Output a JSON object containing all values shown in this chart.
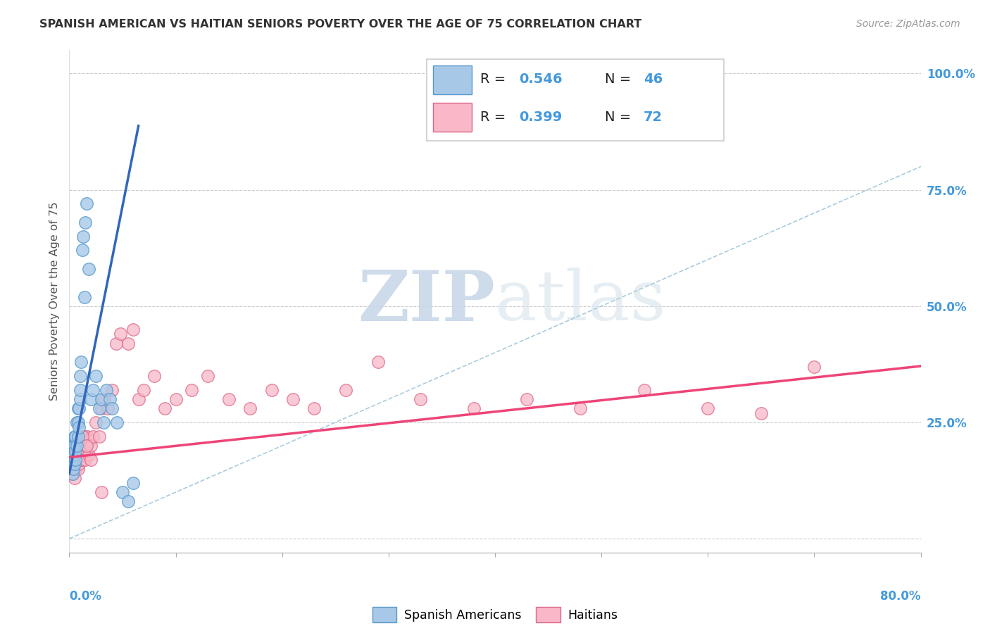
{
  "title": "SPANISH AMERICAN VS HAITIAN SENIORS POVERTY OVER THE AGE OF 75 CORRELATION CHART",
  "source": "Source: ZipAtlas.com",
  "ylabel": "Seniors Poverty Over the Age of 75",
  "xlim": [
    0.0,
    0.8
  ],
  "ylim": [
    -0.03,
    1.05
  ],
  "blue_color": "#a8c8e8",
  "blue_edge": "#5599cc",
  "pink_color": "#f8b8c8",
  "pink_edge": "#dd6688",
  "blue_line": "#3366bb",
  "pink_line": "#ee4477",
  "ref_line_color": "#aaccdd",
  "text_blue": "#4499dd",
  "grid_color": "#cccccc",
  "r_blue": "0.546",
  "n_blue": "46",
  "r_pink": "0.399",
  "n_pink": "72",
  "spanish_x": [
    0.001,
    0.002,
    0.002,
    0.003,
    0.003,
    0.003,
    0.004,
    0.004,
    0.004,
    0.005,
    0.005,
    0.005,
    0.005,
    0.006,
    0.006,
    0.006,
    0.007,
    0.007,
    0.008,
    0.008,
    0.008,
    0.009,
    0.009,
    0.01,
    0.01,
    0.01,
    0.011,
    0.012,
    0.013,
    0.014,
    0.015,
    0.016,
    0.018,
    0.02,
    0.022,
    0.025,
    0.028,
    0.03,
    0.032,
    0.035,
    0.038,
    0.04,
    0.045,
    0.05,
    0.055,
    0.06
  ],
  "spanish_y": [
    0.16,
    0.18,
    0.2,
    0.14,
    0.16,
    0.18,
    0.15,
    0.17,
    0.2,
    0.16,
    0.18,
    0.2,
    0.22,
    0.17,
    0.19,
    0.22,
    0.2,
    0.25,
    0.22,
    0.25,
    0.28,
    0.24,
    0.28,
    0.3,
    0.32,
    0.35,
    0.38,
    0.62,
    0.65,
    0.52,
    0.68,
    0.72,
    0.58,
    0.3,
    0.32,
    0.35,
    0.28,
    0.3,
    0.25,
    0.32,
    0.3,
    0.28,
    0.25,
    0.1,
    0.08,
    0.12
  ],
  "haitian_x": [
    0.002,
    0.003,
    0.004,
    0.004,
    0.005,
    0.005,
    0.005,
    0.006,
    0.006,
    0.006,
    0.007,
    0.007,
    0.008,
    0.008,
    0.008,
    0.009,
    0.009,
    0.01,
    0.01,
    0.011,
    0.011,
    0.012,
    0.012,
    0.013,
    0.013,
    0.014,
    0.015,
    0.015,
    0.016,
    0.017,
    0.018,
    0.019,
    0.02,
    0.022,
    0.025,
    0.028,
    0.03,
    0.033,
    0.036,
    0.04,
    0.044,
    0.048,
    0.055,
    0.06,
    0.065,
    0.07,
    0.08,
    0.09,
    0.1,
    0.115,
    0.13,
    0.15,
    0.17,
    0.19,
    0.21,
    0.23,
    0.26,
    0.29,
    0.33,
    0.38,
    0.43,
    0.48,
    0.54,
    0.6,
    0.65,
    0.7,
    0.005,
    0.008,
    0.012,
    0.016,
    0.02,
    0.03
  ],
  "haitian_y": [
    0.15,
    0.16,
    0.14,
    0.17,
    0.13,
    0.16,
    0.19,
    0.15,
    0.17,
    0.2,
    0.16,
    0.19,
    0.15,
    0.17,
    0.2,
    0.16,
    0.19,
    0.17,
    0.2,
    0.18,
    0.21,
    0.17,
    0.2,
    0.18,
    0.22,
    0.19,
    0.17,
    0.22,
    0.2,
    0.22,
    0.18,
    0.21,
    0.2,
    0.22,
    0.25,
    0.22,
    0.28,
    0.3,
    0.28,
    0.32,
    0.42,
    0.44,
    0.42,
    0.45,
    0.3,
    0.32,
    0.35,
    0.28,
    0.3,
    0.32,
    0.35,
    0.3,
    0.28,
    0.32,
    0.3,
    0.28,
    0.32,
    0.38,
    0.3,
    0.28,
    0.3,
    0.28,
    0.32,
    0.28,
    0.27,
    0.37,
    0.18,
    0.2,
    0.22,
    0.2,
    0.17,
    0.1
  ]
}
